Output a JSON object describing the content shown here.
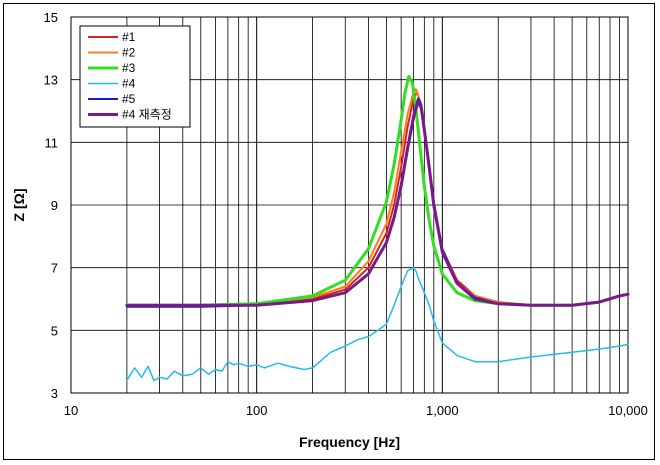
{
  "chart_data": {
    "type": "line",
    "title": "",
    "xlabel": "Frequency [Hz]",
    "ylabel": "Z [Ω]",
    "xscale": "log",
    "xlim": [
      10,
      10000
    ],
    "ylim": [
      3,
      15
    ],
    "x_ticks": [
      10,
      100,
      1000,
      10000
    ],
    "x_tick_labels": [
      "10",
      "100",
      "1,000",
      "10,000"
    ],
    "y_ticks": [
      3,
      5,
      7,
      9,
      11,
      13,
      15
    ],
    "y_tick_labels": [
      "3",
      "5",
      "7",
      "9",
      "11",
      "13",
      "15"
    ],
    "grid": true,
    "legend_position": "top-left",
    "series": [
      {
        "name": "#1",
        "color": "#d42020",
        "width": 2,
        "x": [
          20,
          50,
          100,
          200,
          300,
          400,
          500,
          550,
          600,
          650,
          700,
          730,
          760,
          800,
          850,
          900,
          1000,
          1200,
          1500,
          2000,
          3000,
          5000,
          7000,
          9000,
          10000
        ],
        "y": [
          5.8,
          5.8,
          5.85,
          6.0,
          6.3,
          7.0,
          8.1,
          9.0,
          10.2,
          11.5,
          12.4,
          12.6,
          12.3,
          11.4,
          10.2,
          9.0,
          7.6,
          6.6,
          6.1,
          5.9,
          5.8,
          5.8,
          5.9,
          6.1,
          6.15
        ]
      },
      {
        "name": "#2",
        "color": "#ff7a1a",
        "width": 2,
        "x": [
          20,
          50,
          100,
          200,
          300,
          400,
          500,
          550,
          600,
          650,
          700,
          720,
          750,
          800,
          850,
          900,
          1000,
          1200,
          1500,
          2000,
          3000,
          5000,
          7000,
          9000,
          10000
        ],
        "y": [
          5.8,
          5.8,
          5.85,
          6.05,
          6.4,
          7.2,
          8.4,
          9.4,
          10.7,
          11.9,
          12.6,
          12.7,
          12.4,
          11.4,
          10.1,
          8.9,
          7.5,
          6.5,
          6.1,
          5.9,
          5.8,
          5.8,
          5.9,
          6.1,
          6.15
        ]
      },
      {
        "name": "#3",
        "color": "#33dd22",
        "width": 3,
        "x": [
          20,
          50,
          100,
          200,
          300,
          400,
          500,
          550,
          600,
          630,
          660,
          690,
          720,
          760,
          800,
          850,
          900,
          1000,
          1200,
          1500,
          2000,
          3000,
          5000,
          7000,
          9000,
          10000
        ],
        "y": [
          5.8,
          5.8,
          5.85,
          6.1,
          6.6,
          7.6,
          9.1,
          10.3,
          11.7,
          12.6,
          13.1,
          12.9,
          12.1,
          10.8,
          9.6,
          8.5,
          7.7,
          6.8,
          6.2,
          5.95,
          5.85,
          5.8,
          5.8,
          5.9,
          6.1,
          6.15
        ]
      },
      {
        "name": "#4",
        "color": "#22bbee",
        "width": 1.5,
        "x": [
          20,
          22,
          24,
          26,
          28,
          30,
          33,
          36,
          40,
          45,
          50,
          55,
          60,
          65,
          70,
          75,
          80,
          90,
          100,
          110,
          130,
          150,
          180,
          200,
          250,
          300,
          350,
          400,
          450,
          500,
          550,
          600,
          650,
          700,
          720,
          750,
          800,
          850,
          900,
          1000,
          1200,
          1500,
          2000,
          3000,
          5000,
          7000,
          9000,
          10000
        ],
        "y": [
          3.4,
          3.8,
          3.5,
          3.85,
          3.4,
          3.5,
          3.45,
          3.7,
          3.55,
          3.6,
          3.8,
          3.6,
          3.75,
          3.7,
          4.0,
          3.9,
          3.95,
          3.85,
          3.9,
          3.8,
          3.95,
          3.85,
          3.75,
          3.8,
          4.3,
          4.5,
          4.7,
          4.8,
          5.0,
          5.2,
          5.8,
          6.4,
          6.9,
          7.0,
          6.9,
          6.6,
          6.2,
          5.8,
          5.3,
          4.6,
          4.2,
          4.0,
          4.0,
          4.15,
          4.3,
          4.4,
          4.5,
          4.55
        ]
      },
      {
        "name": "#5",
        "color": "#1a1acc",
        "width": 2,
        "x": [
          20,
          50,
          100,
          200,
          300,
          400,
          500,
          550,
          600,
          650,
          700,
          740,
          770,
          800,
          850,
          900,
          1000,
          1200,
          1500,
          2000,
          3000,
          5000,
          7000,
          9000,
          10000
        ],
        "y": [
          5.75,
          5.75,
          5.8,
          5.95,
          6.2,
          6.8,
          7.8,
          8.6,
          9.7,
          10.9,
          11.9,
          12.4,
          12.2,
          11.5,
          10.3,
          9.1,
          7.6,
          6.5,
          6.05,
          5.85,
          5.8,
          5.8,
          5.9,
          6.1,
          6.15
        ]
      },
      {
        "name": "#4 재측정",
        "color": "#7a1a8a",
        "width": 3,
        "x": [
          20,
          50,
          100,
          200,
          300,
          400,
          500,
          550,
          600,
          650,
          700,
          740,
          770,
          800,
          850,
          900,
          1000,
          1200,
          1500,
          2000,
          3000,
          5000,
          7000,
          9000,
          10000
        ],
        "y": [
          5.8,
          5.8,
          5.8,
          5.95,
          6.2,
          6.8,
          7.8,
          8.6,
          9.6,
          10.8,
          11.8,
          12.3,
          12.1,
          11.4,
          10.2,
          9.0,
          7.5,
          6.5,
          6.0,
          5.85,
          5.8,
          5.8,
          5.9,
          6.1,
          6.15
        ]
      }
    ]
  }
}
